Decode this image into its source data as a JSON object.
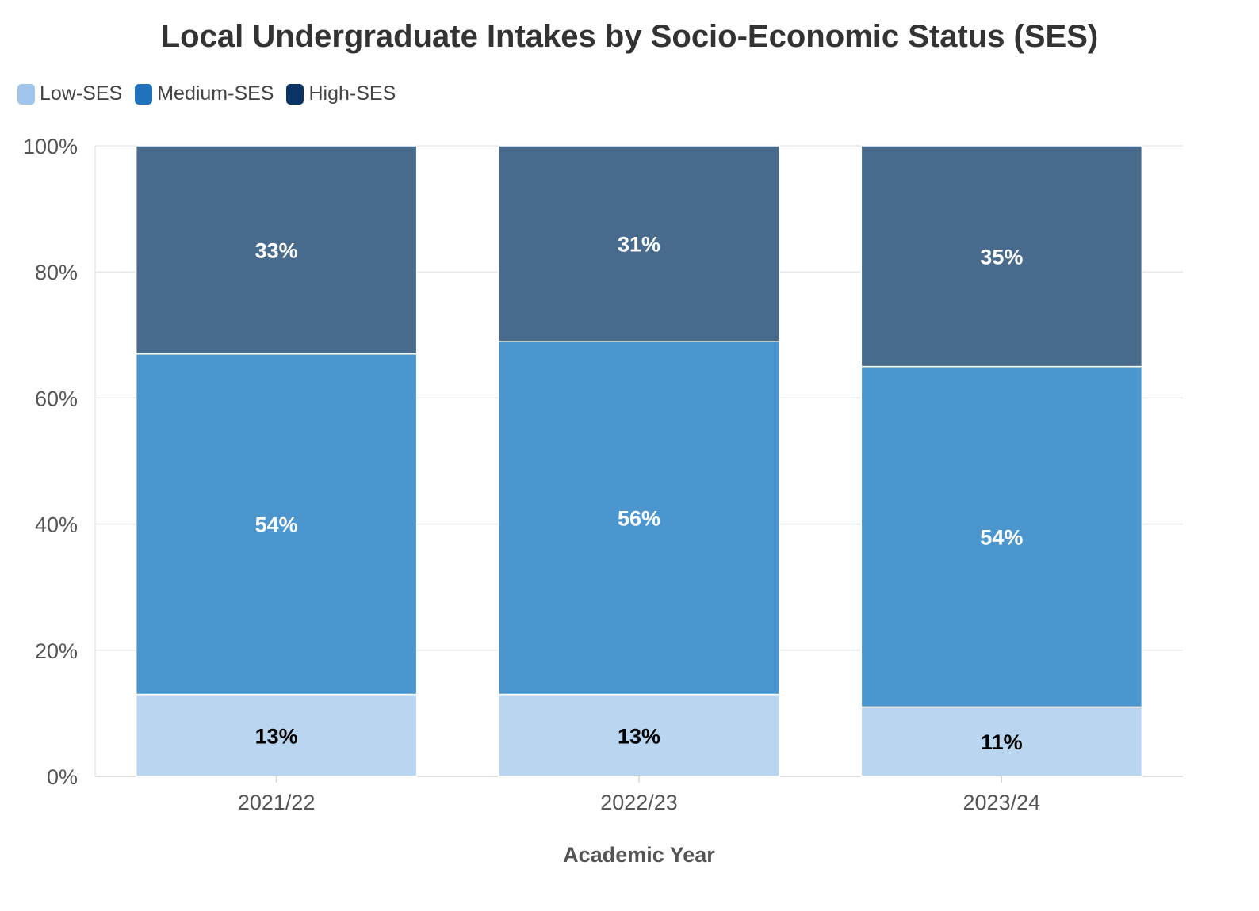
{
  "chart_data": {
    "type": "bar",
    "stacked": true,
    "title": "Local Undergraduate Intakes by Socio-Economic Status (SES)",
    "xlabel": "Academic Year",
    "ylabel": "",
    "categories": [
      "2021/22",
      "2022/23",
      "2023/24"
    ],
    "series": [
      {
        "name": "Low-SES",
        "values": [
          13,
          13,
          11
        ],
        "color": "#b9d5ef",
        "legend_color": "#9fc6ea",
        "label_color": "#000000"
      },
      {
        "name": "Medium-SES",
        "values": [
          54,
          56,
          54
        ],
        "color": "#4b96cf",
        "legend_color": "#1f72bb",
        "label_color": "#ffffff"
      },
      {
        "name": "High-SES",
        "values": [
          33,
          31,
          35
        ],
        "color": "#476a8d",
        "legend_color": "#0a3465",
        "label_color": "#ffffff"
      }
    ],
    "data_labels": [
      [
        "13%",
        "13%",
        "11%"
      ],
      [
        "54%",
        "56%",
        "54%"
      ],
      [
        "33%",
        "31%",
        "35%"
      ]
    ],
    "ylim": [
      0,
      100
    ],
    "yticks": [
      0,
      20,
      40,
      60,
      80,
      100
    ],
    "ytick_labels": [
      "0%",
      "20%",
      "40%",
      "60%",
      "80%",
      "100%"
    ],
    "grid": true,
    "legend_position": "top-left"
  }
}
